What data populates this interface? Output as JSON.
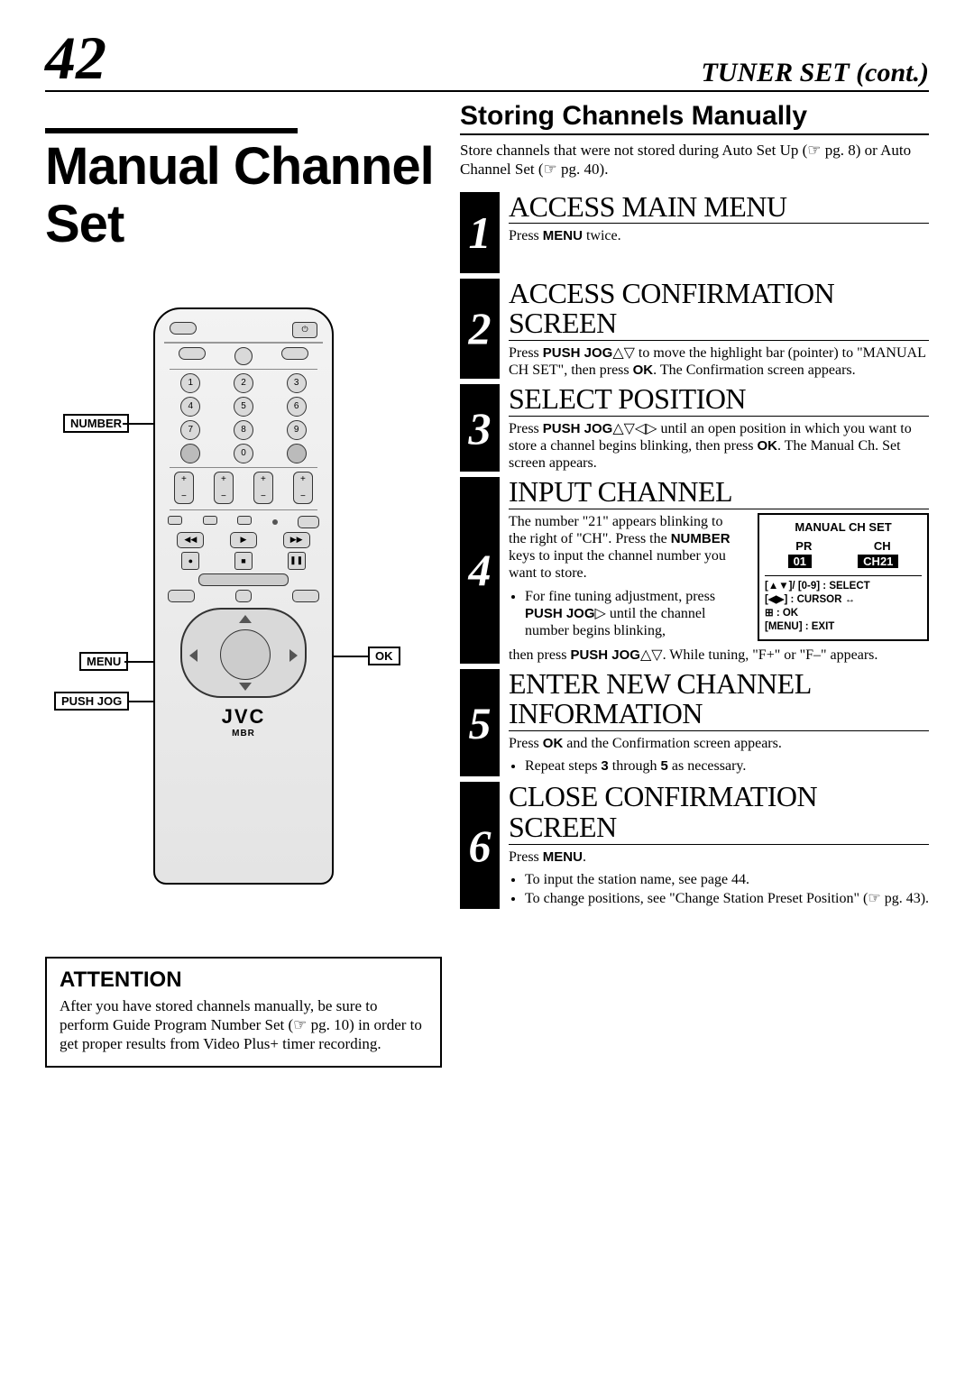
{
  "page_number": "42",
  "section_header": "TUNER SET (cont.)",
  "main_title": "Manual Channel Set",
  "remote": {
    "logo": "JVC",
    "sublogo": "MBR",
    "callouts": {
      "number": "NUMBER",
      "menu": "MENU",
      "push_jog": "PUSH JOG",
      "ok": "OK"
    }
  },
  "attention": {
    "title": "ATTENTION",
    "text": "After you have stored channels manually, be sure to perform Guide Program Number Set (☞ pg. 10) in order to get proper results from Video Plus+ timer recording."
  },
  "right": {
    "sub_title": "Storing Channels Manually",
    "intro": "Store channels that were not stored during Auto Set Up (☞ pg. 8) or Auto Channel Set (☞ pg. 40)."
  },
  "step1": {
    "num": "1",
    "title": "ACCESS MAIN MENU",
    "body_pre": "Press ",
    "body_b": "MENU",
    "body_post": " twice."
  },
  "step2": {
    "num": "2",
    "title": "ACCESS CONFIRMATION SCREEN",
    "body": "Press <b>PUSH JOG</b>△▽ to move the highlight bar (pointer) to \"MANUAL CH SET\", then press <b>OK</b>. The Confirmation screen appears."
  },
  "step3": {
    "num": "3",
    "title": "SELECT POSITION",
    "body": "Press <b>PUSH JOG</b>△▽◁▷ until an open position in which you want to store a channel begins blinking, then press <b>OK</b>. The Manual Ch. Set screen appears."
  },
  "step4": {
    "num": "4",
    "title": "INPUT CHANNEL",
    "body_left": "The number \"21\" appears blinking to the right of \"CH\". Press the <b>NUMBER</b> keys to input the channel number you want to store.",
    "bullet": "For fine tuning adjustment, press <b>PUSH JOG</b>▷ until the channel number begins blinking,",
    "after": "then press  <b>PUSH JOG</b>△▽. While tuning, \"F+\" or \"F–\" appears.",
    "osd": {
      "title": "MANUAL CH SET",
      "pr": "PR",
      "ch": "CH",
      "pr_val": "01",
      "ch_val": "CH21",
      "hint1": "[▲▼]/ [0-9] : SELECT",
      "hint2": "[◀▶] : CURSOR ↔",
      "hint3": "⊞  : OK",
      "hint4": "[MENU] : EXIT"
    }
  },
  "step5": {
    "num": "5",
    "title": "ENTER NEW CHANNEL INFORMATION",
    "body": "Press <b>OK</b> and the Confirmation screen appears.",
    "bullet": "Repeat steps <b>3</b> through <b>5</b> as necessary."
  },
  "step6": {
    "num": "6",
    "title": "CLOSE CONFIRMATION SCREEN",
    "body": "Press <b>MENU</b>.",
    "bullet1": "To input the station name, see page 44.",
    "bullet2": "To change positions, see \"Change Station Preset Position\" (☞ pg. 43)."
  },
  "colors": {
    "black": "#000000",
    "white": "#ffffff",
    "remote_bg": "#e4e4e4"
  }
}
